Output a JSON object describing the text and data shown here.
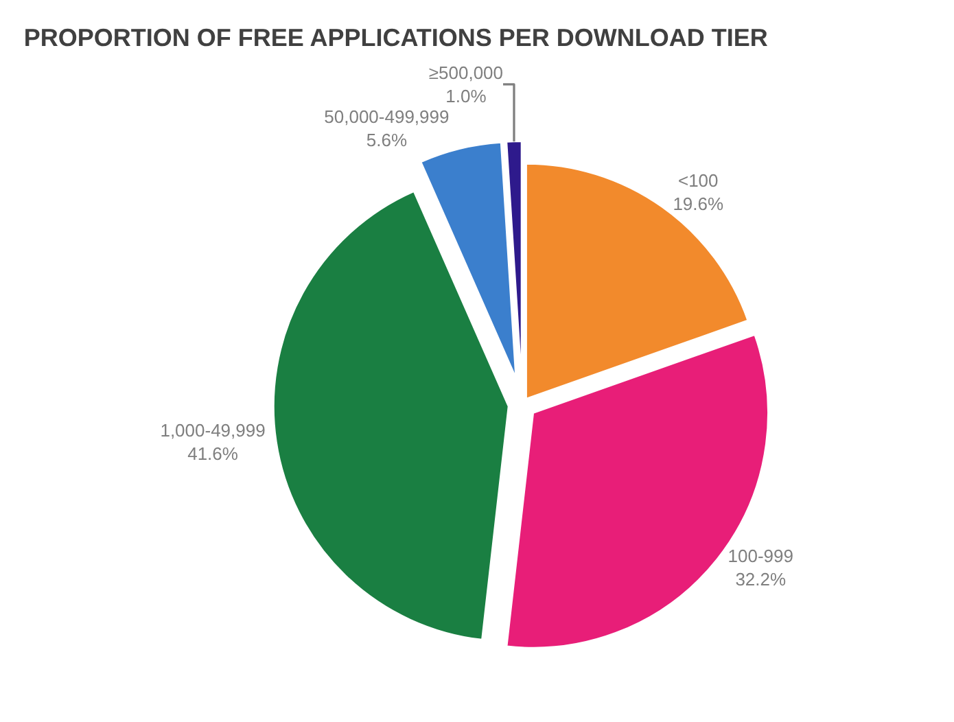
{
  "chart_data": {
    "type": "pie",
    "title": "PROPORTION OF FREE APPLICATIONS PER DOWNLOAD TIER",
    "categories": [
      "<100",
      "100-999",
      "1,000-49,999",
      "50,000-499,999",
      "≥500,000"
    ],
    "values": [
      19.6,
      32.2,
      41.6,
      5.6,
      1.0
    ],
    "value_labels": [
      "19.6%",
      "32.2%",
      "41.6%",
      "5.6%",
      "1.0%"
    ],
    "colors": [
      "#f28a2c",
      "#e81e78",
      "#1a7f42",
      "#3b7fcd",
      "#2e1a8c"
    ],
    "legend": false
  }
}
